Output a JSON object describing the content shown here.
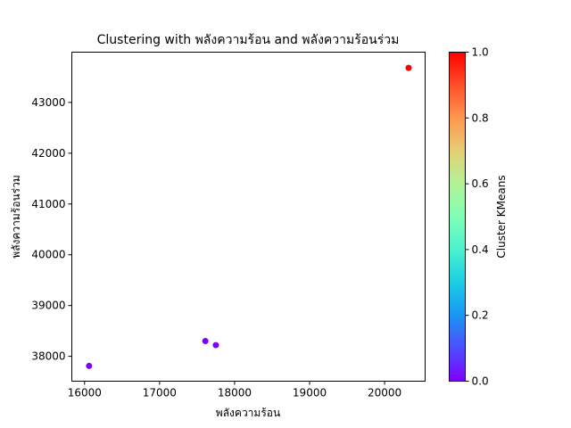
{
  "chart_data": {
    "type": "scatter",
    "title": "Clustering with พลังความร้อน and พลังความร้อนร่วม",
    "xlabel": "พลังความร้อน",
    "ylabel": "พลังความร้อนร่วม",
    "xlim": [
      15830,
      20540
    ],
    "ylim": [
      37510,
      43990
    ],
    "xticks": [
      16000,
      17000,
      18000,
      19000,
      20000
    ],
    "yticks": [
      38000,
      39000,
      40000,
      41000,
      42000,
      43000
    ],
    "points": [
      {
        "x": 16060,
        "y": 37810,
        "cluster": 0
      },
      {
        "x": 17610,
        "y": 38300,
        "cluster": 0
      },
      {
        "x": 17750,
        "y": 38220,
        "cluster": 0
      },
      {
        "x": 20320,
        "y": 43680,
        "cluster": 1
      }
    ],
    "colorbar": {
      "label": "Cluster KMeans",
      "range": [
        0.0,
        1.0
      ],
      "ticks": [
        "0.0",
        "0.2",
        "0.4",
        "0.6",
        "0.8",
        "1.0"
      ],
      "colormap": "rainbow"
    },
    "cluster_colors": [
      "#8000ff",
      "#ff0000"
    ],
    "grid": false,
    "legend": "none"
  }
}
